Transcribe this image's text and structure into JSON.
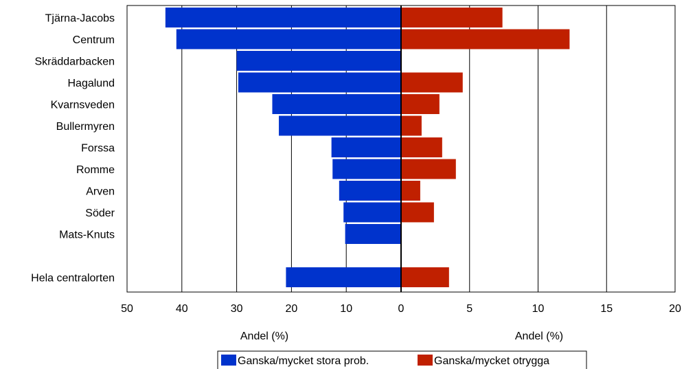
{
  "chart_data": {
    "type": "bar",
    "orientation": "horizontal-diverging",
    "categories": [
      "Tjärna-Jacobs",
      "Centrum",
      "Skräddarbacken",
      "Hagalund",
      "Kvarnsveden ",
      "Bullermyren",
      "Forssa",
      "Romme",
      "Arven",
      "Söder",
      "Mats-Knuts",
      "",
      "Hela centralorten"
    ],
    "series": [
      {
        "name": "Ganska/mycket stora prob.",
        "color": "#0033cc",
        "side": "left",
        "values": [
          43,
          41,
          30,
          29.7,
          23.5,
          22.3,
          12.7,
          12.5,
          11.3,
          10.5,
          10.2,
          null,
          21
        ]
      },
      {
        "name": "Ganska/mycket otrygga",
        "color": "#c02000",
        "side": "right",
        "values": [
          7.4,
          12.3,
          0,
          4.5,
          2.8,
          1.5,
          3,
          4,
          1.4,
          2.4,
          0,
          null,
          3.5
        ]
      }
    ],
    "left_axis": {
      "label": "Andel (%)",
      "range": [
        50,
        0
      ],
      "ticks": [
        "50",
        "40",
        "30",
        "20",
        "10",
        "0"
      ],
      "tick_values": [
        50,
        40,
        30,
        20,
        10,
        0
      ]
    },
    "right_axis": {
      "label": "Andel (%)",
      "range": [
        0,
        20
      ],
      "ticks": [
        "0",
        "5",
        "10",
        "15",
        "20"
      ],
      "tick_values": [
        0,
        5,
        10,
        15,
        20
      ]
    },
    "grid": true,
    "legend_position": "bottom-center"
  }
}
